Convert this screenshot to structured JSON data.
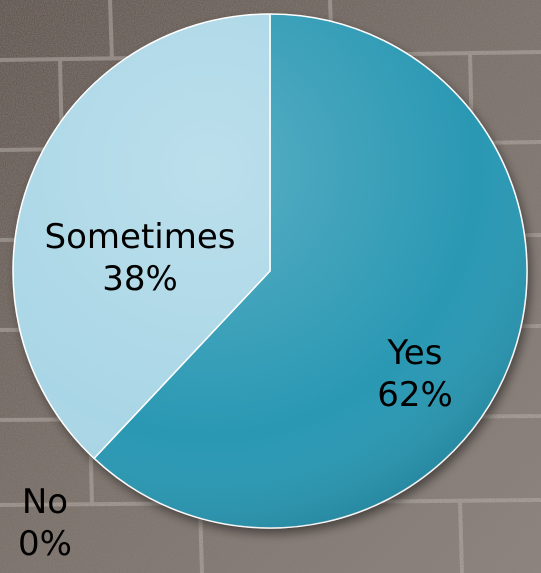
{
  "chart_data": {
    "type": "pie",
    "slices": [
      {
        "label": "Yes",
        "value": 62,
        "value_label": "62%",
        "color": "#2a98b3"
      },
      {
        "label": "Sometimes",
        "value": 38,
        "value_label": "38%",
        "color": "#a9d6e6"
      },
      {
        "label": "No",
        "value": 0,
        "value_label": "0%",
        "color": "#7fbfd4"
      }
    ],
    "title": "",
    "legend": "none",
    "background": "stone wall texture"
  }
}
